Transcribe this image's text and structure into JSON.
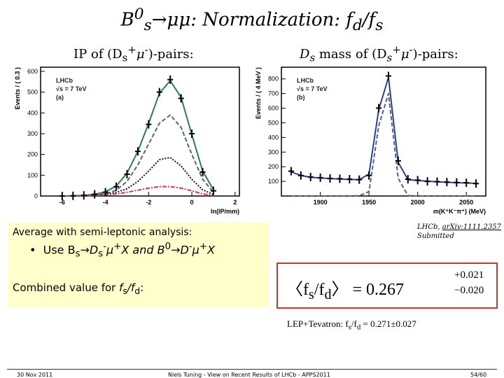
{
  "title": [
    "B",
    "0",
    "s",
    "→μμ: Normalization: f",
    "d",
    "/f",
    "s"
  ],
  "left_caption": [
    "IP of (D",
    "s",
    "+",
    "μ",
    "-",
    ")-pairs:"
  ],
  "right_caption": [
    "D",
    "s",
    " mass of (D",
    "s",
    "+",
    "μ",
    "-",
    ")-pairs:"
  ],
  "reference": {
    "source": "LHCb, ",
    "link": "arXiv:1111.2357",
    "status": "Submitted"
  },
  "summary_box": {
    "heading": "Average with semi-leptonic analysis:",
    "bullet": [
      "Use B",
      "s",
      "→D",
      "s",
      "-",
      "μ",
      "+",
      "X and B",
      "0",
      "→D",
      "-",
      "μ",
      "+",
      "X"
    ],
    "combined": [
      "Combined value for ",
      "f",
      "s",
      "/f",
      "d",
      ":"
    ]
  },
  "formula": {
    "main": [
      "〈f",
      "s",
      "/f",
      "d",
      "〉 = 0.267"
    ],
    "upper": "+0.021",
    "lower": "−0.020"
  },
  "comparison": [
    "LEP+Tevatron:  f",
    "s",
    "/f",
    "d",
    " = 0.271±0.027"
  ],
  "footer": {
    "date": "30 Nov 2011",
    "center": "Niels Tuning  -  View on Recent Results of LHCb  -  APPS2011",
    "page": "54/60"
  },
  "chart_data": [
    {
      "type": "line",
      "annotations": [
        "LHCb",
        "√s = 7 TeV",
        "(a)"
      ],
      "xlabel": "ln(IP/mm)",
      "ylabel": "Events / ( 0.3 )",
      "xlim": [
        -7,
        2.2
      ],
      "ylim": [
        0,
        620
      ],
      "xticks": [
        -6,
        -4,
        -2,
        0,
        2
      ],
      "yticks": [
        0,
        100,
        200,
        300,
        400,
        500,
        600
      ],
      "x": [
        -6,
        -5.5,
        -5,
        -4.5,
        -4,
        -3.5,
        -3,
        -2.5,
        -2,
        -1.5,
        -1,
        -0.5,
        0,
        0.5,
        1
      ],
      "series": [
        {
          "color": "#2e7d4f",
          "style": "solid",
          "values": [
            0,
            1,
            3,
            8,
            20,
            48,
            110,
            215,
            350,
            495,
            555,
            475,
            295,
            120,
            30
          ]
        },
        {
          "color": "#5a5f8a",
          "style": "dashed",
          "values": [
            0,
            0,
            1,
            4,
            10,
            28,
            70,
            150,
            250,
            350,
            390,
            330,
            200,
            80,
            18
          ]
        },
        {
          "color": "#111111",
          "style": "dotted",
          "values": [
            0,
            0,
            1,
            3,
            8,
            18,
            35,
            70,
            120,
            175,
            185,
            145,
            80,
            30,
            7
          ]
        },
        {
          "color": "#d0306a",
          "style": "dashdot",
          "values": [
            0,
            0,
            1,
            2,
            5,
            10,
            18,
            28,
            38,
            45,
            45,
            38,
            25,
            10,
            3
          ]
        },
        {
          "color": "#000000",
          "style": "cross",
          "values": [
            0,
            1,
            3,
            8,
            18,
            45,
            105,
            215,
            345,
            500,
            560,
            470,
            300,
            115,
            25
          ]
        }
      ]
    },
    {
      "type": "line",
      "annotations": [
        "LHCb",
        "√s = 7 TeV",
        "(b)"
      ],
      "xlabel": "m(K⁺K⁻π⁺) (MeV)",
      "ylabel": "Events / ( 4 MeV )",
      "xlim": [
        1860,
        2070
      ],
      "ylim": [
        0,
        880
      ],
      "xticks": [
        1900,
        1950,
        2000,
        2050
      ],
      "yticks": [
        100,
        200,
        300,
        400,
        500,
        600,
        700,
        800
      ],
      "x": [
        1870,
        1880,
        1890,
        1900,
        1910,
        1920,
        1930,
        1940,
        1950,
        1960,
        1970,
        1980,
        1990,
        2000,
        2010,
        2020,
        2030,
        2040,
        2050,
        2060
      ],
      "series": [
        {
          "color": "#2a3f9a",
          "style": "solid",
          "values": [
            165,
            140,
            128,
            123,
            119,
            116,
            113,
            111,
            150,
            590,
            810,
            230,
            112,
            106,
            101,
            97,
            94,
            91,
            89,
            86
          ]
        },
        {
          "color": "#5a5f8a",
          "style": "dashed",
          "values": [
            0,
            0,
            0,
            0,
            0,
            0,
            0,
            2,
            30,
            480,
            700,
            120,
            3,
            0,
            0,
            0,
            0,
            0,
            0,
            0
          ]
        },
        {
          "color": "#000000",
          "style": "cross",
          "values": [
            170,
            140,
            130,
            125,
            120,
            118,
            115,
            112,
            140,
            600,
            820,
            240,
            115,
            108,
            100,
            98,
            95,
            92,
            90,
            85
          ]
        }
      ]
    }
  ]
}
